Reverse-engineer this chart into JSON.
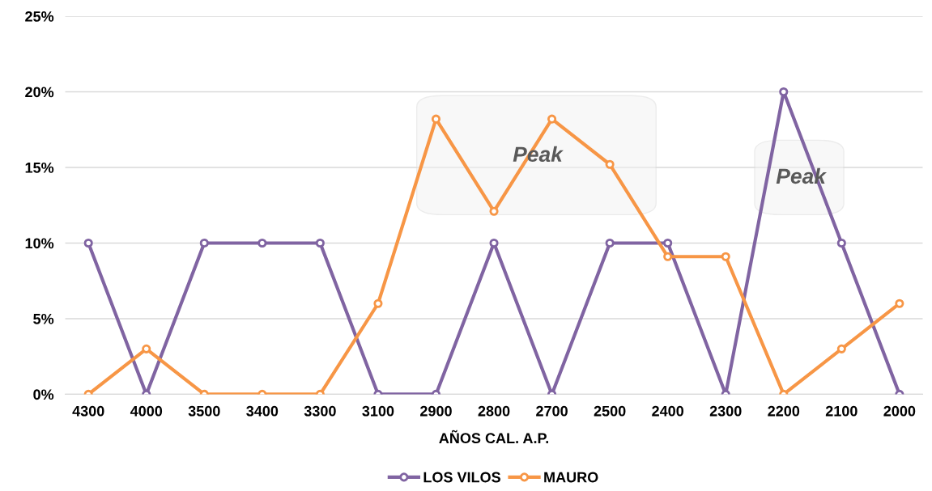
{
  "chart_data": {
    "type": "line",
    "xlabel": "AÑOS CAL. A.P.",
    "categories": [
      "4300",
      "4000",
      "3500",
      "3400",
      "3300",
      "3100",
      "2900",
      "2800",
      "2700",
      "2500",
      "2400",
      "2300",
      "2200",
      "2100",
      "2000"
    ],
    "series": [
      {
        "name": "LOS VILOS",
        "color": "#8064a2",
        "values": [
          10,
          0,
          10,
          10,
          10,
          0,
          0,
          10,
          0,
          10,
          10,
          0,
          20,
          10,
          0
        ]
      },
      {
        "name": "MAURO",
        "color": "#f79646",
        "values": [
          0,
          3,
          0,
          0,
          0,
          6,
          18.2,
          12.1,
          18.2,
          15.2,
          9.1,
          9.1,
          0,
          3,
          6
        ]
      }
    ],
    "ylim": [
      0,
      25
    ],
    "yticks": [
      {
        "value": 0,
        "label": "0%"
      },
      {
        "value": 5,
        "label": "5%"
      },
      {
        "value": 10,
        "label": "10%"
      },
      {
        "value": 15,
        "label": "15%"
      },
      {
        "value": 20,
        "label": "20%"
      },
      {
        "value": 25,
        "label": "25%"
      }
    ],
    "grid": "y",
    "legend": "bottom",
    "marker": "circle",
    "line_style": "solid",
    "annotations": [
      "Peak",
      "Peak"
    ]
  }
}
